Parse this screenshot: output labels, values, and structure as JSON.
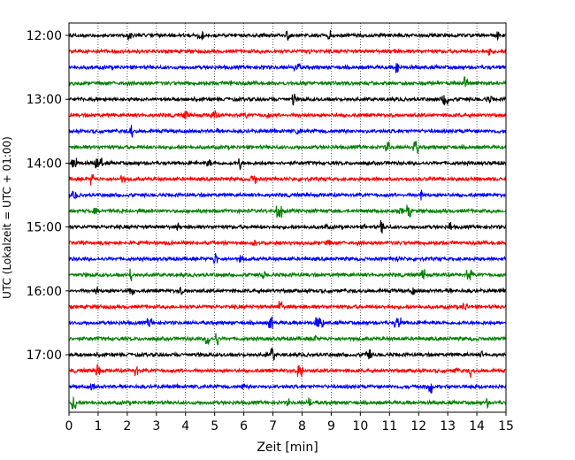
{
  "chart_data": {
    "type": "line",
    "subtype": "helicorder-seismogram",
    "title": "",
    "xlabel": "Zeit  [min]",
    "ylabel": "UTC (Lokalzeit = UTC + 01:00)",
    "xlim": [
      0,
      15
    ],
    "x_ticks": [
      0,
      1,
      2,
      3,
      4,
      5,
      6,
      7,
      8,
      9,
      10,
      11,
      12,
      13,
      14,
      15
    ],
    "x_tick_labels": [
      "0",
      "1",
      "2",
      "3",
      "4",
      "5",
      "6",
      "7",
      "8",
      "9",
      "10",
      "11",
      "12",
      "13",
      "14",
      "15"
    ],
    "y_tick_labels": [
      "12:00",
      "13:00",
      "14:00",
      "15:00",
      "16:00",
      "17:00"
    ],
    "y_tick_hours": [
      12,
      13,
      14,
      15,
      16,
      17
    ],
    "start_time": "12:00",
    "minutes_per_line": 15,
    "line_count": 24,
    "grid": {
      "x_dotted_lines": true,
      "y_lines": false
    },
    "colors": [
      "#000000",
      "#ff0000",
      "#0000ff",
      "#008000"
    ],
    "series_color_cycle": [
      "black",
      "red",
      "blue",
      "green"
    ]
  }
}
